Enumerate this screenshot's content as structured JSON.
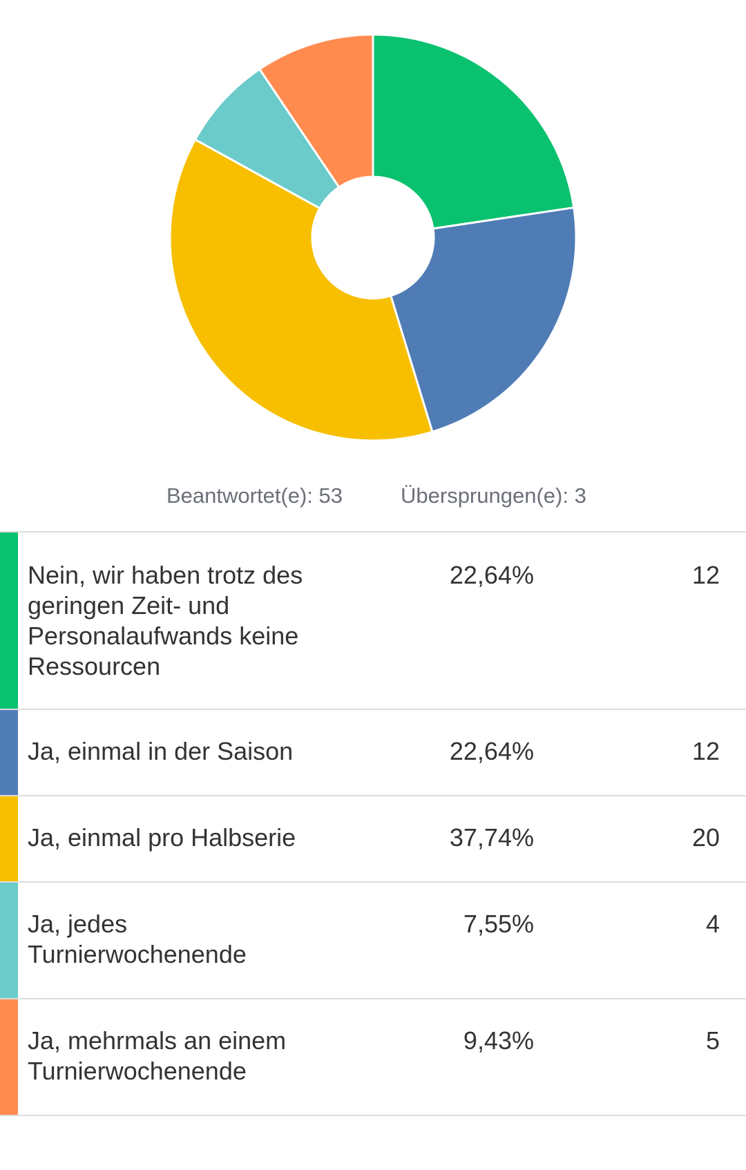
{
  "summary": {
    "answered_label": "Beantwortet(e): 53",
    "skipped_label": "Übersprungen(e): 3"
  },
  "chart_data": {
    "type": "pie",
    "donut": true,
    "categories": [
      "Nein, wir haben trotz des geringen Zeit- und Personalaufwands keine Ressourcen",
      "Ja, einmal in der Saison",
      "Ja, einmal pro Halbserie",
      "Ja, jedes Turnierwochenende",
      "Ja, mehrmals an einem Turnierwochenende"
    ],
    "values": [
      22.64,
      22.64,
      37.74,
      7.55,
      9.43
    ],
    "counts": [
      12,
      12,
      20,
      4,
      5
    ],
    "colors": [
      "#0ac170",
      "#507cb6",
      "#f7bf00",
      "#6bcbcb",
      "#ff8b4f"
    ],
    "start_angle_deg": 0,
    "direction": "clockwise"
  },
  "table": {
    "rows": [
      {
        "label": "Nein, wir haben trotz des geringen Zeit- und Personalaufwands keine Ressourcen",
        "percent": "22,64%",
        "count": "12",
        "color": "#0ac170"
      },
      {
        "label": "Ja, einmal in der Saison",
        "percent": "22,64%",
        "count": "12",
        "color": "#507cb6"
      },
      {
        "label": "Ja, einmal pro Halbserie",
        "percent": "37,74%",
        "count": "20",
        "color": "#f7bf00"
      },
      {
        "label": "Ja, jedes Turnierwochenende",
        "percent": "7,55%",
        "count": "4",
        "color": "#6bcbcb"
      },
      {
        "label": "Ja, mehrmals an einem Turnierwochenende",
        "percent": "9,43%",
        "count": "5",
        "color": "#ff8b4f"
      }
    ]
  }
}
